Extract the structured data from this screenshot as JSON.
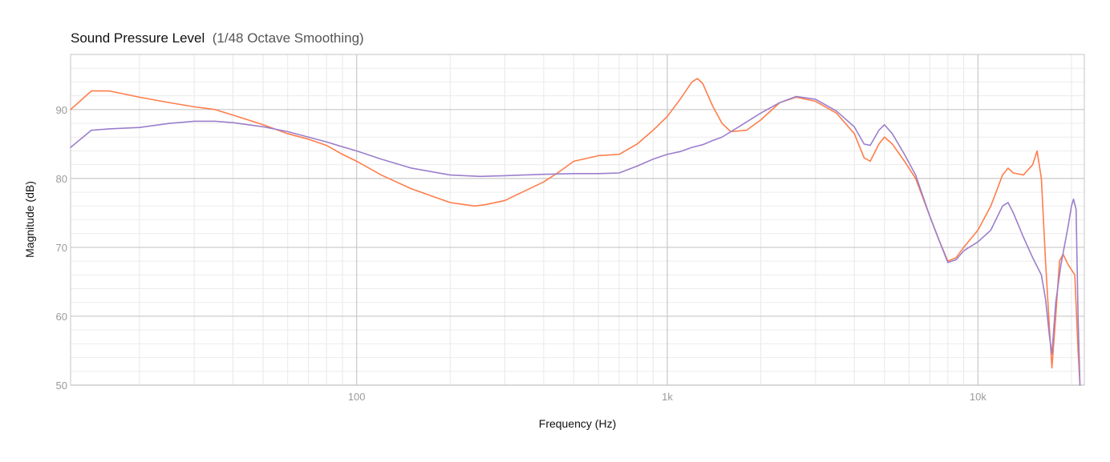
{
  "chart_data": {
    "type": "line",
    "title": "Sound Pressure Level",
    "subtitle": "(1/48 Octave Smoothing)",
    "xlabel": "Frequency (Hz)",
    "ylabel": "Magnitude (dB)",
    "xscale": "log",
    "xlim": [
      12,
      22000
    ],
    "ylim": [
      50,
      98
    ],
    "x_ticks": [
      {
        "value": 100,
        "label": "100"
      },
      {
        "value": 1000,
        "label": "1k"
      },
      {
        "value": 10000,
        "label": "10k"
      }
    ],
    "y_ticks": [
      {
        "value": 50,
        "label": "50"
      },
      {
        "value": 60,
        "label": "60"
      },
      {
        "value": 70,
        "label": "70"
      },
      {
        "value": 80,
        "label": "80"
      },
      {
        "value": 90,
        "label": "90"
      }
    ],
    "grid": true,
    "legend": "none",
    "series": [
      {
        "color": "#ff7d4a",
        "points": [
          [
            12,
            90.0
          ],
          [
            14,
            92.7
          ],
          [
            16,
            92.7
          ],
          [
            20,
            91.8
          ],
          [
            25,
            91.0
          ],
          [
            30,
            90.4
          ],
          [
            35,
            90.0
          ],
          [
            40,
            89.2
          ],
          [
            50,
            87.8
          ],
          [
            60,
            86.5
          ],
          [
            70,
            85.7
          ],
          [
            80,
            84.8
          ],
          [
            90,
            83.5
          ],
          [
            100,
            82.5
          ],
          [
            120,
            80.5
          ],
          [
            150,
            78.5
          ],
          [
            200,
            76.5
          ],
          [
            240,
            76.0
          ],
          [
            260,
            76.2
          ],
          [
            300,
            76.8
          ],
          [
            400,
            79.5
          ],
          [
            450,
            81.0
          ],
          [
            500,
            82.5
          ],
          [
            600,
            83.3
          ],
          [
            700,
            83.5
          ],
          [
            800,
            85.0
          ],
          [
            900,
            87.0
          ],
          [
            1000,
            89.0
          ],
          [
            1100,
            91.5
          ],
          [
            1200,
            94.0
          ],
          [
            1250,
            94.5
          ],
          [
            1300,
            93.8
          ],
          [
            1400,
            90.5
          ],
          [
            1500,
            88.0
          ],
          [
            1600,
            86.8
          ],
          [
            1800,
            87.0
          ],
          [
            2000,
            88.5
          ],
          [
            2300,
            91.0
          ],
          [
            2600,
            91.8
          ],
          [
            3000,
            91.2
          ],
          [
            3500,
            89.5
          ],
          [
            4000,
            86.5
          ],
          [
            4300,
            83.0
          ],
          [
            4500,
            82.5
          ],
          [
            4800,
            85.0
          ],
          [
            5000,
            86.0
          ],
          [
            5300,
            85.0
          ],
          [
            5800,
            82.5
          ],
          [
            6300,
            80.0
          ],
          [
            7000,
            74.5
          ],
          [
            7500,
            71.0
          ],
          [
            8000,
            68.0
          ],
          [
            8500,
            68.5
          ],
          [
            9000,
            70.0
          ],
          [
            10000,
            72.5
          ],
          [
            11000,
            76.0
          ],
          [
            12000,
            80.5
          ],
          [
            12500,
            81.5
          ],
          [
            13000,
            80.8
          ],
          [
            14000,
            80.5
          ],
          [
            15000,
            82.0
          ],
          [
            15500,
            84.0
          ],
          [
            16000,
            80.0
          ],
          [
            16500,
            68.0
          ],
          [
            17000,
            58.0
          ],
          [
            17300,
            52.5
          ],
          [
            17800,
            60.0
          ],
          [
            18300,
            68.0
          ],
          [
            18800,
            69.0
          ],
          [
            19500,
            67.5
          ],
          [
            20500,
            66.0
          ],
          [
            21000,
            55.0
          ],
          [
            21300,
            50.0
          ]
        ]
      },
      {
        "color": "#9b7fcc",
        "points": [
          [
            12,
            84.5
          ],
          [
            14,
            87.0
          ],
          [
            16,
            87.2
          ],
          [
            20,
            87.4
          ],
          [
            25,
            88.0
          ],
          [
            30,
            88.3
          ],
          [
            35,
            88.3
          ],
          [
            40,
            88.1
          ],
          [
            50,
            87.5
          ],
          [
            60,
            86.8
          ],
          [
            70,
            86.0
          ],
          [
            80,
            85.3
          ],
          [
            90,
            84.6
          ],
          [
            100,
            84.0
          ],
          [
            120,
            82.8
          ],
          [
            150,
            81.5
          ],
          [
            200,
            80.5
          ],
          [
            250,
            80.3
          ],
          [
            300,
            80.4
          ],
          [
            400,
            80.6
          ],
          [
            500,
            80.7
          ],
          [
            600,
            80.7
          ],
          [
            700,
            80.8
          ],
          [
            800,
            81.8
          ],
          [
            900,
            82.8
          ],
          [
            1000,
            83.5
          ],
          [
            1100,
            83.9
          ],
          [
            1200,
            84.5
          ],
          [
            1300,
            84.9
          ],
          [
            1400,
            85.5
          ],
          [
            1500,
            86.0
          ],
          [
            1700,
            87.5
          ],
          [
            2000,
            89.5
          ],
          [
            2300,
            91.0
          ],
          [
            2600,
            91.9
          ],
          [
            3000,
            91.5
          ],
          [
            3500,
            89.8
          ],
          [
            4000,
            87.5
          ],
          [
            4300,
            85.0
          ],
          [
            4500,
            84.8
          ],
          [
            4800,
            87.0
          ],
          [
            5000,
            87.8
          ],
          [
            5300,
            86.5
          ],
          [
            5800,
            83.5
          ],
          [
            6300,
            80.5
          ],
          [
            7000,
            74.5
          ],
          [
            7500,
            71.0
          ],
          [
            8000,
            67.8
          ],
          [
            8500,
            68.2
          ],
          [
            9000,
            69.5
          ],
          [
            10000,
            70.8
          ],
          [
            11000,
            72.5
          ],
          [
            12000,
            76.0
          ],
          [
            12500,
            76.5
          ],
          [
            13000,
            75.0
          ],
          [
            14000,
            71.5
          ],
          [
            15000,
            68.5
          ],
          [
            16000,
            66.0
          ],
          [
            16500,
            62.5
          ],
          [
            17000,
            57.0
          ],
          [
            17300,
            54.5
          ],
          [
            17800,
            62.0
          ],
          [
            18500,
            67.5
          ],
          [
            19500,
            73.0
          ],
          [
            20000,
            76.0
          ],
          [
            20300,
            77.0
          ],
          [
            20700,
            75.5
          ],
          [
            21000,
            60.0
          ],
          [
            21300,
            50.0
          ]
        ]
      }
    ]
  }
}
